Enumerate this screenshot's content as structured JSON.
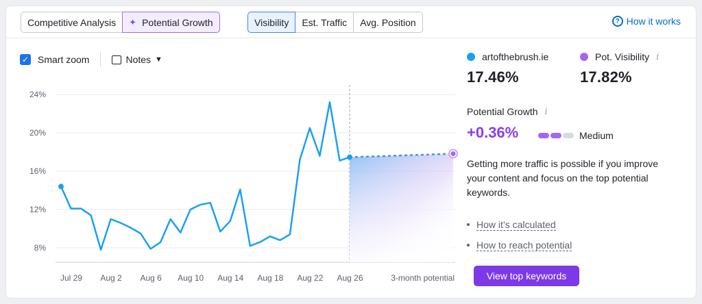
{
  "toolbar": {
    "analysis_tabs": [
      "Competitive Analysis",
      "Potential Growth"
    ],
    "metric_tabs": [
      "Visibility",
      "Est. Traffic",
      "Avg. Position"
    ],
    "how_it_works": "How it works"
  },
  "controls": {
    "smart_zoom": "Smart zoom",
    "smart_zoom_checked": true,
    "notes": "Notes"
  },
  "sidebar": {
    "domain_label": "artofthebrush.ie",
    "domain_value": "17.46%",
    "domain_color": "#1aa0f0",
    "pot_label": "Pot. Visibility",
    "pot_value": "17.82%",
    "pot_color": "#a366f0",
    "growth_label": "Potential Growth",
    "growth_value": "+0.36%",
    "growth_level": "Medium",
    "growth_bar_filled": 2,
    "growth_bar_total": 3,
    "description": "Getting more traffic is possible if you improve your content and focus on the top potential keywords.",
    "links": [
      "How it’s calculated",
      "How to reach potential"
    ],
    "cta": "View top keywords"
  },
  "chart_data": {
    "type": "line",
    "y_ticks": [
      "24%",
      "20%",
      "16%",
      "12%",
      "8%"
    ],
    "ylim": [
      6.5,
      25
    ],
    "x_ticks": [
      "Jul 29",
      "Aug 2",
      "Aug 6",
      "Aug 10",
      "Aug 14",
      "Aug 18",
      "Aug 22",
      "Aug 26",
      "3-month potential"
    ],
    "series": [
      {
        "name": "artofthebrush.ie",
        "color": "#1aa0f0",
        "values": [
          14.4,
          12.1,
          12.1,
          11.4,
          7.8,
          11.0,
          10.6,
          10.1,
          9.5,
          7.9,
          8.6,
          11.0,
          9.6,
          12.0,
          12.5,
          12.7,
          9.7,
          10.8,
          14.1,
          8.2,
          8.6,
          9.2,
          8.8,
          9.4,
          17.2,
          20.5,
          17.6,
          23.2,
          17.1,
          17.46
        ]
      },
      {
        "name": "Pot. Visibility",
        "color": "#a366f0",
        "values": [
          17.46,
          17.82
        ]
      }
    ]
  }
}
